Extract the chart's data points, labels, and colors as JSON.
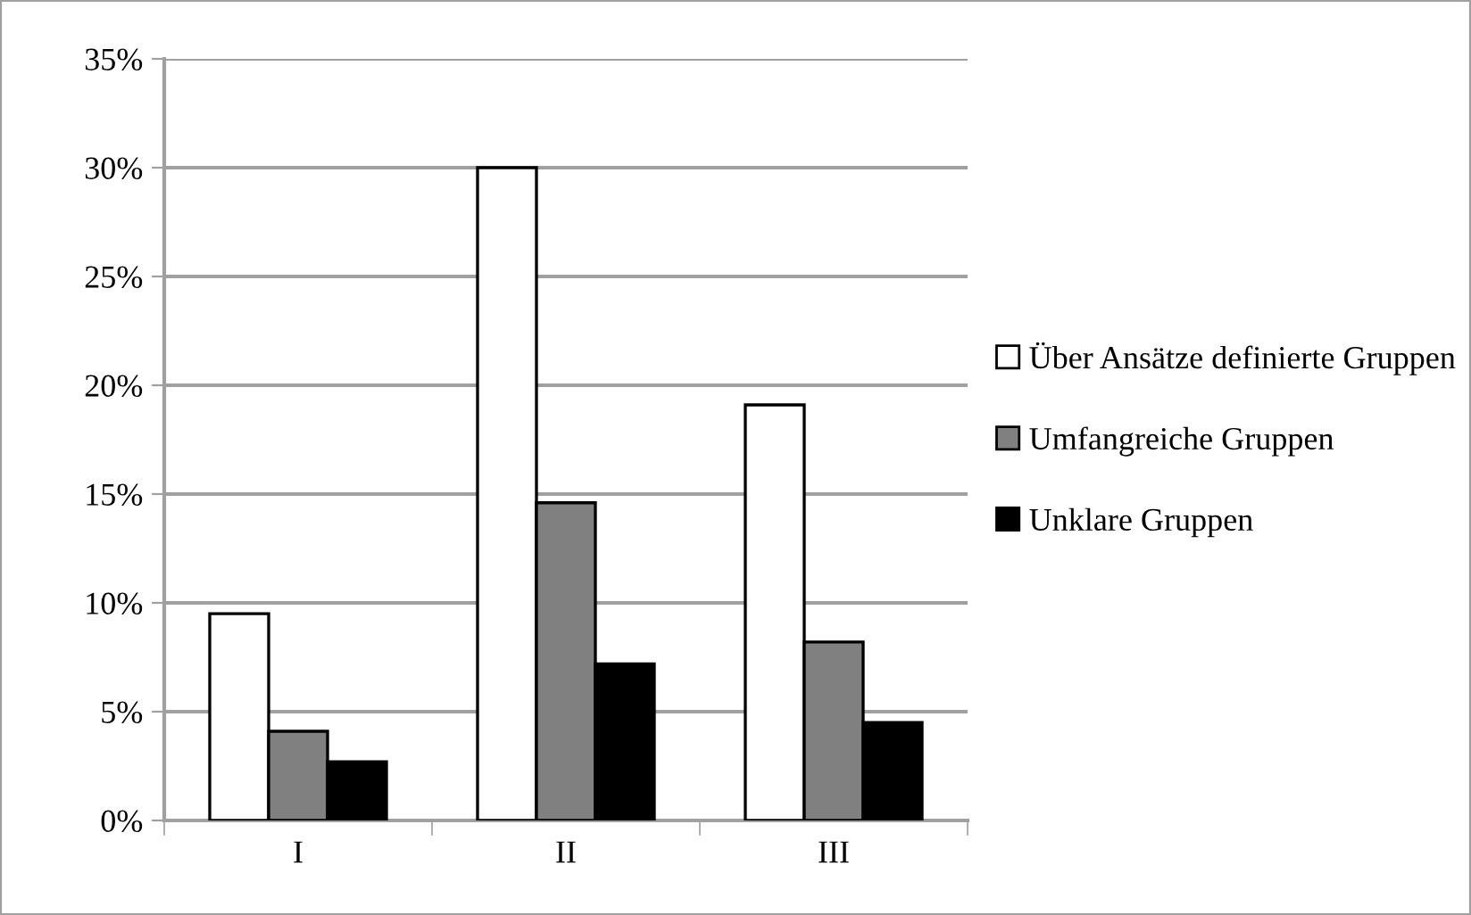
{
  "chart_data": {
    "type": "bar",
    "categories": [
      "I",
      "II",
      "III"
    ],
    "series": [
      {
        "name": "Über Ansätze definierte Gruppen",
        "color": "#ffffff",
        "values": [
          9.5,
          30.0,
          19.1
        ]
      },
      {
        "name": "Umfangreiche Gruppen",
        "color": "#808080",
        "values": [
          4.1,
          14.6,
          8.2
        ]
      },
      {
        "name": "Unklare Gruppen",
        "color": "#000000",
        "values": [
          2.7,
          7.2,
          4.5
        ]
      }
    ],
    "ylim": [
      0,
      35
    ],
    "yticks": [
      {
        "value": 0,
        "label": "0%"
      },
      {
        "value": 5,
        "label": "5%"
      },
      {
        "value": 10,
        "label": "10%"
      },
      {
        "value": 15,
        "label": "15%"
      },
      {
        "value": 20,
        "label": "20%"
      },
      {
        "value": 25,
        "label": "25%"
      },
      {
        "value": 30,
        "label": "30%"
      },
      {
        "value": 35,
        "label": "35%"
      }
    ],
    "grid": "y",
    "legend": "right"
  }
}
